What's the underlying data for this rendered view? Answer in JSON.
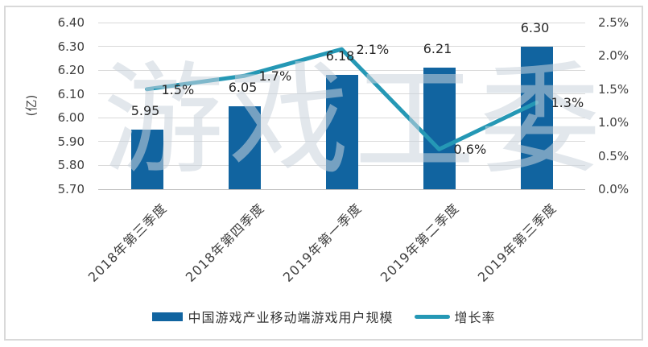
{
  "watermark": "游戏工委",
  "chart_data": {
    "type": "combo-bar-line",
    "categories": [
      "2018年第三季度",
      "2018年第四季度",
      "2019年第一季度",
      "2019年第二季度",
      "2019年第三季度"
    ],
    "series": [
      {
        "name": "中国游戏产业移动端游戏用户规模",
        "type": "bar",
        "axis": "left",
        "values": [
          5.95,
          6.05,
          6.18,
          6.21,
          6.3
        ],
        "data_labels": [
          "5.95",
          "6.05",
          "6.18",
          "6.21",
          "6.30"
        ],
        "color": "#1164a0"
      },
      {
        "name": "增长率",
        "type": "line",
        "axis": "right",
        "values": [
          1.5,
          1.7,
          2.1,
          0.6,
          1.3
        ],
        "data_labels": [
          "1.5%",
          "1.7%",
          "2.1%",
          "0.6%",
          "1.3%"
        ],
        "color": "#2598b5"
      }
    ],
    "left_axis": {
      "title": "(亿)",
      "min": 5.7,
      "max": 6.4,
      "ticks": [
        "6.40",
        "6.30",
        "6.20",
        "6.10",
        "6.00",
        "5.90",
        "5.80",
        "5.70"
      ],
      "tick_values": [
        6.4,
        6.3,
        6.2,
        6.1,
        6.0,
        5.9,
        5.8,
        5.7
      ]
    },
    "right_axis": {
      "min": 0.0,
      "max": 2.5,
      "ticks": [
        "2.5%",
        "2.0%",
        "1.5%",
        "1.0%",
        "0.5%",
        "0.0%"
      ],
      "tick_values": [
        2.5,
        2.0,
        1.5,
        1.0,
        0.5,
        0.0
      ]
    },
    "grid": true,
    "legend_position": "bottom",
    "colors": {
      "bar": "#1164a0",
      "line": "#2598b5",
      "gridline": "#d9d9d9",
      "axis_line": "#bfbfbf",
      "text": "#404040",
      "watermark": "rgba(203,211,220,0.55)",
      "frame_border": "#d9d9d9"
    }
  }
}
